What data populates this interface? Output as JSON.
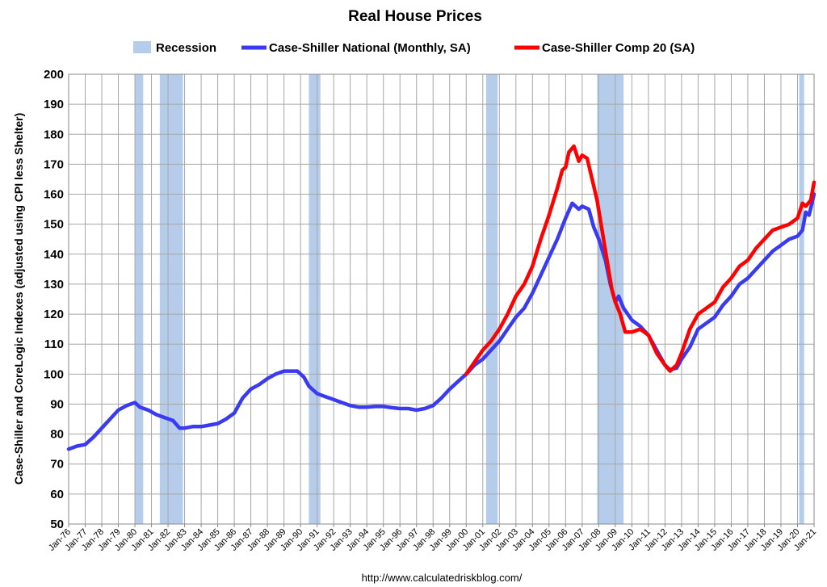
{
  "chart_data": {
    "type": "line",
    "title": "Real House Prices",
    "ylabel": "Case-Shiller and CoreLogic Indexes (adjusted using CPI less Shelter)",
    "xlabel": "",
    "source": "http://www.calculatedriskblog.com/",
    "ylim": [
      50,
      200
    ],
    "yticks": [
      50,
      60,
      70,
      80,
      90,
      100,
      110,
      120,
      130,
      140,
      150,
      160,
      170,
      180,
      190,
      200
    ],
    "xlim": [
      1976.0,
      2021.0
    ],
    "xtick_labels": [
      "Jan-76",
      "Jan-77",
      "Jan-78",
      "Jan-79",
      "Jan-80",
      "Jan-81",
      "Jan-82",
      "Jan-83",
      "Jan-84",
      "Jan-85",
      "Jan-86",
      "Jan-87",
      "Jan-88",
      "Jan-89",
      "Jan-90",
      "Jan-91",
      "Jan-92",
      "Jan-93",
      "Jan-94",
      "Jan-95",
      "Jan-96",
      "Jan-97",
      "Jan-98",
      "Jan-99",
      "Jan-00",
      "Jan-01",
      "Jan-02",
      "Jan-03",
      "Jan-04",
      "Jan-05",
      "Jan-06",
      "Jan-07",
      "Jan-08",
      "Jan-09",
      "Jan-10",
      "Jan-11",
      "Jan-12",
      "Jan-13",
      "Jan-14",
      "Jan-15",
      "Jan-16",
      "Jan-17",
      "Jan-18",
      "Jan-19",
      "Jan-20",
      "Jan-21"
    ],
    "grid": true,
    "legend_position": "top",
    "legend": [
      {
        "label": "Recession",
        "kind": "box",
        "color": "#b5cdeb"
      },
      {
        "label": "Case-Shiller National (Monthly, SA)",
        "kind": "line",
        "color": "#3a3af0"
      },
      {
        "label": "Case-Shiller Comp 20  (SA)",
        "kind": "line",
        "color": "#ff0000"
      }
    ],
    "recessions": [
      [
        1980.0,
        1980.5
      ],
      [
        1981.5,
        1982.9
      ],
      [
        1990.5,
        1991.2
      ],
      [
        2001.2,
        2001.9
      ],
      [
        2007.9,
        2009.5
      ],
      [
        2020.1,
        2020.4
      ]
    ],
    "series": [
      {
        "name": "Case-Shiller National (Monthly, SA)",
        "color": "#3a3af0",
        "points": [
          [
            1976.0,
            75
          ],
          [
            1976.5,
            76
          ],
          [
            1977.0,
            76.5
          ],
          [
            1977.5,
            79
          ],
          [
            1978.0,
            82
          ],
          [
            1978.5,
            85
          ],
          [
            1979.0,
            88
          ],
          [
            1979.5,
            89.5
          ],
          [
            1980.0,
            90.5
          ],
          [
            1980.3,
            89
          ],
          [
            1980.8,
            88
          ],
          [
            1981.3,
            86.5
          ],
          [
            1981.8,
            85.5
          ],
          [
            1982.3,
            84.5
          ],
          [
            1982.7,
            82
          ],
          [
            1983.0,
            82
          ],
          [
            1983.5,
            82.5
          ],
          [
            1984.0,
            82.5
          ],
          [
            1984.5,
            83
          ],
          [
            1985.0,
            83.5
          ],
          [
            1985.5,
            85
          ],
          [
            1986.0,
            87
          ],
          [
            1986.5,
            92
          ],
          [
            1987.0,
            95
          ],
          [
            1987.5,
            96.5
          ],
          [
            1988.0,
            98.5
          ],
          [
            1988.5,
            100
          ],
          [
            1989.0,
            101
          ],
          [
            1989.4,
            101
          ],
          [
            1989.8,
            101
          ],
          [
            1990.2,
            99
          ],
          [
            1990.5,
            96
          ],
          [
            1991.0,
            93.5
          ],
          [
            1991.5,
            92.5
          ],
          [
            1992.0,
            91.5
          ],
          [
            1992.5,
            90.5
          ],
          [
            1993.0,
            89.5
          ],
          [
            1993.5,
            89
          ],
          [
            1994.0,
            89
          ],
          [
            1994.5,
            89.2
          ],
          [
            1995.0,
            89.2
          ],
          [
            1995.5,
            88.8
          ],
          [
            1996.0,
            88.5
          ],
          [
            1996.5,
            88.5
          ],
          [
            1997.0,
            88
          ],
          [
            1997.5,
            88.5
          ],
          [
            1998.0,
            89.5
          ],
          [
            1998.5,
            92
          ],
          [
            1999.0,
            95
          ],
          [
            1999.5,
            97.5
          ],
          [
            2000.0,
            100
          ],
          [
            2000.5,
            103
          ],
          [
            2001.0,
            105
          ],
          [
            2001.5,
            108
          ],
          [
            2002.0,
            111
          ],
          [
            2002.5,
            115
          ],
          [
            2003.0,
            119
          ],
          [
            2003.5,
            122
          ],
          [
            2004.0,
            127
          ],
          [
            2004.5,
            133
          ],
          [
            2005.0,
            139
          ],
          [
            2005.5,
            145
          ],
          [
            2006.0,
            152
          ],
          [
            2006.4,
            157
          ],
          [
            2006.8,
            155
          ],
          [
            2007.0,
            156
          ],
          [
            2007.4,
            155
          ],
          [
            2007.7,
            149
          ],
          [
            2008.0,
            145
          ],
          [
            2008.4,
            138
          ],
          [
            2008.7,
            130
          ],
          [
            2009.0,
            124
          ],
          [
            2009.2,
            126
          ],
          [
            2009.5,
            122
          ],
          [
            2010.0,
            118
          ],
          [
            2010.5,
            116
          ],
          [
            2011.0,
            113
          ],
          [
            2011.5,
            108
          ],
          [
            2012.0,
            103
          ],
          [
            2012.3,
            101.5
          ],
          [
            2012.7,
            102
          ],
          [
            2013.0,
            105
          ],
          [
            2013.5,
            109
          ],
          [
            2014.0,
            115
          ],
          [
            2014.5,
            117
          ],
          [
            2015.0,
            119
          ],
          [
            2015.5,
            123
          ],
          [
            2016.0,
            126
          ],
          [
            2016.5,
            130
          ],
          [
            2017.0,
            132
          ],
          [
            2017.5,
            135
          ],
          [
            2018.0,
            138
          ],
          [
            2018.5,
            141
          ],
          [
            2019.0,
            143
          ],
          [
            2019.5,
            145
          ],
          [
            2020.0,
            146
          ],
          [
            2020.3,
            148
          ],
          [
            2020.5,
            154
          ],
          [
            2020.7,
            153
          ],
          [
            2021.0,
            160
          ]
        ]
      },
      {
        "name": "Case-Shiller Comp 20  (SA)",
        "color": "#ff0000",
        "points": [
          [
            2000.0,
            100
          ],
          [
            2000.5,
            104
          ],
          [
            2001.0,
            108
          ],
          [
            2001.5,
            111
          ],
          [
            2002.0,
            115
          ],
          [
            2002.5,
            120
          ],
          [
            2003.0,
            126
          ],
          [
            2003.5,
            130
          ],
          [
            2004.0,
            136
          ],
          [
            2004.5,
            145
          ],
          [
            2005.0,
            153
          ],
          [
            2005.5,
            162
          ],
          [
            2005.8,
            168
          ],
          [
            2006.0,
            169
          ],
          [
            2006.2,
            174
          ],
          [
            2006.5,
            176
          ],
          [
            2006.8,
            171
          ],
          [
            2007.0,
            173
          ],
          [
            2007.3,
            172
          ],
          [
            2007.6,
            165
          ],
          [
            2007.9,
            158
          ],
          [
            2008.2,
            148
          ],
          [
            2008.5,
            138
          ],
          [
            2008.8,
            128
          ],
          [
            2009.0,
            124
          ],
          [
            2009.3,
            120
          ],
          [
            2009.6,
            114
          ],
          [
            2010.0,
            114
          ],
          [
            2010.5,
            115
          ],
          [
            2011.0,
            113
          ],
          [
            2011.5,
            107
          ],
          [
            2012.0,
            103
          ],
          [
            2012.3,
            101
          ],
          [
            2012.7,
            103
          ],
          [
            2013.0,
            107
          ],
          [
            2013.5,
            115
          ],
          [
            2014.0,
            120
          ],
          [
            2014.5,
            122
          ],
          [
            2015.0,
            124
          ],
          [
            2015.5,
            129
          ],
          [
            2016.0,
            132
          ],
          [
            2016.5,
            136
          ],
          [
            2017.0,
            138
          ],
          [
            2017.5,
            142
          ],
          [
            2018.0,
            145
          ],
          [
            2018.5,
            148
          ],
          [
            2019.0,
            149
          ],
          [
            2019.5,
            150
          ],
          [
            2020.0,
            152
          ],
          [
            2020.3,
            157
          ],
          [
            2020.5,
            156
          ],
          [
            2020.8,
            158
          ],
          [
            2021.0,
            164
          ]
        ]
      }
    ]
  }
}
